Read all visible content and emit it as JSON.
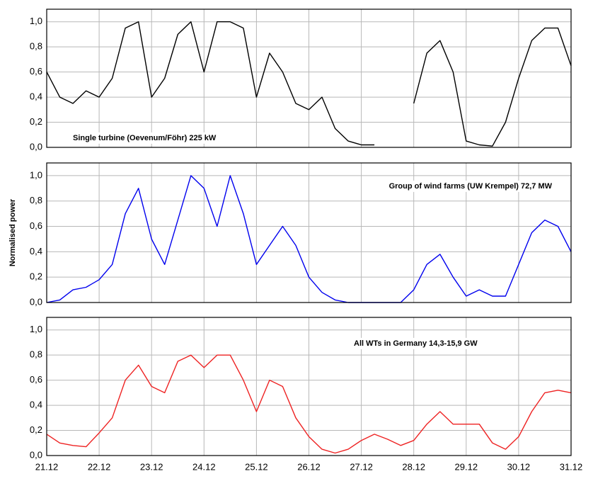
{
  "chart_data": [
    {
      "type": "line",
      "annotation": "Single turbine (Oevenum/Föhr) 225 kW",
      "x": [
        21,
        21.25,
        21.5,
        21.75,
        22,
        22.25,
        22.5,
        22.75,
        23,
        23.25,
        23.5,
        23.75,
        24,
        24.25,
        24.5,
        24.75,
        25,
        25.25,
        25.5,
        25.75,
        26,
        26.25,
        26.5,
        26.75,
        27,
        27.25,
        27.5,
        27.75,
        28,
        28.25,
        28.5,
        28.75,
        29,
        29.25,
        29.5,
        29.75,
        30,
        30.25,
        30.5,
        30.75,
        31
      ],
      "series": [
        {
          "color": "#000000",
          "values": [
            0.6,
            0.4,
            0.35,
            0.45,
            0.4,
            0.55,
            0.95,
            1.0,
            0.4,
            0.55,
            0.9,
            1.0,
            0.6,
            1.0,
            1.0,
            0.95,
            0.4,
            0.75,
            0.6,
            0.35,
            0.3,
            0.4,
            0.15,
            0.05,
            0.02,
            0.02,
            null,
            null,
            0.35,
            0.75,
            0.85,
            0.6,
            0.05,
            0.02,
            0.01,
            0.2,
            0.55,
            0.85,
            0.95,
            0.95,
            0.65
          ]
        }
      ],
      "xlim": [
        21,
        31
      ],
      "ylim": [
        0,
        1.1
      ],
      "grid": true,
      "yticks": [
        {
          "value": 0,
          "label": "0,0"
        },
        {
          "value": 0.2,
          "label": "0,2"
        },
        {
          "value": 0.4,
          "label": "0,4"
        },
        {
          "value": 0.6,
          "label": "0,6"
        },
        {
          "value": 0.8,
          "label": "0,8"
        },
        {
          "value": 1.0,
          "label": "1,0"
        }
      ]
    },
    {
      "type": "line",
      "annotation": "Group of wind farms (UW Krempel) 72,7 MW",
      "y_label": "Normalised power",
      "x": [
        21,
        21.25,
        21.5,
        21.75,
        22,
        22.25,
        22.5,
        22.75,
        23,
        23.25,
        23.5,
        23.75,
        24,
        24.25,
        24.5,
        24.75,
        25,
        25.25,
        25.5,
        25.75,
        26,
        26.25,
        26.5,
        26.75,
        27,
        27.25,
        27.5,
        27.75,
        28,
        28.25,
        28.5,
        28.75,
        29,
        29.25,
        29.5,
        29.75,
        30,
        30.25,
        30.5,
        30.75,
        31
      ],
      "series": [
        {
          "color": "#0000ee",
          "values": [
            0.0,
            0.02,
            0.1,
            0.12,
            0.18,
            0.3,
            0.7,
            0.9,
            0.5,
            0.3,
            0.65,
            1.0,
            0.9,
            0.6,
            1.0,
            0.7,
            0.3,
            0.45,
            0.6,
            0.45,
            0.2,
            0.08,
            0.02,
            0.0,
            0.0,
            0.0,
            0.0,
            0.0,
            0.1,
            0.3,
            0.38,
            0.2,
            0.05,
            0.1,
            0.05,
            0.05,
            0.3,
            0.55,
            0.65,
            0.6,
            0.4
          ]
        }
      ],
      "xlim": [
        21,
        31
      ],
      "ylim": [
        0,
        1.1
      ],
      "grid": true,
      "yticks": [
        {
          "value": 0,
          "label": "0,0"
        },
        {
          "value": 0.2,
          "label": "0,2"
        },
        {
          "value": 0.4,
          "label": "0,4"
        },
        {
          "value": 0.6,
          "label": "0,6"
        },
        {
          "value": 0.8,
          "label": "0,8"
        },
        {
          "value": 1.0,
          "label": "1,0"
        }
      ]
    },
    {
      "type": "line",
      "annotation": "All WTs in Germany 14,3-15,9 GW",
      "x": [
        21,
        21.25,
        21.5,
        21.75,
        22,
        22.25,
        22.5,
        22.75,
        23,
        23.25,
        23.5,
        23.75,
        24,
        24.25,
        24.5,
        24.75,
        25,
        25.25,
        25.5,
        25.75,
        26,
        26.25,
        26.5,
        26.75,
        27,
        27.25,
        27.5,
        27.75,
        28,
        28.25,
        28.5,
        28.75,
        29,
        29.25,
        29.5,
        29.75,
        30,
        30.25,
        30.5,
        30.75,
        31
      ],
      "series": [
        {
          "color": "#ee2222",
          "values": [
            0.17,
            0.1,
            0.08,
            0.07,
            0.18,
            0.3,
            0.6,
            0.72,
            0.55,
            0.5,
            0.75,
            0.8,
            0.7,
            0.8,
            0.8,
            0.6,
            0.35,
            0.6,
            0.55,
            0.3,
            0.15,
            0.05,
            0.02,
            0.05,
            0.12,
            0.17,
            0.13,
            0.08,
            0.12,
            0.25,
            0.35,
            0.25,
            0.25,
            0.25,
            0.1,
            0.05,
            0.15,
            0.35,
            0.5,
            0.52,
            0.5
          ]
        }
      ],
      "xlim": [
        21,
        31
      ],
      "ylim": [
        0,
        1.1
      ],
      "grid": true,
      "xticks": [
        {
          "value": 21,
          "label": "21.12"
        },
        {
          "value": 22,
          "label": "22.12"
        },
        {
          "value": 23,
          "label": "23.12"
        },
        {
          "value": 24,
          "label": "24.12"
        },
        {
          "value": 25,
          "label": "25.12"
        },
        {
          "value": 26,
          "label": "26.12"
        },
        {
          "value": 27,
          "label": "27.12"
        },
        {
          "value": 28,
          "label": "28.12"
        },
        {
          "value": 29,
          "label": "29.12"
        },
        {
          "value": 30,
          "label": "30.12"
        },
        {
          "value": 31,
          "label": "31.12"
        }
      ],
      "yticks": [
        {
          "value": 0,
          "label": "0,0"
        },
        {
          "value": 0.2,
          "label": "0,2"
        },
        {
          "value": 0.4,
          "label": "0,4"
        },
        {
          "value": 0.6,
          "label": "0,6"
        },
        {
          "value": 0.8,
          "label": "0,8"
        },
        {
          "value": 1.0,
          "label": "1,0"
        }
      ]
    }
  ]
}
